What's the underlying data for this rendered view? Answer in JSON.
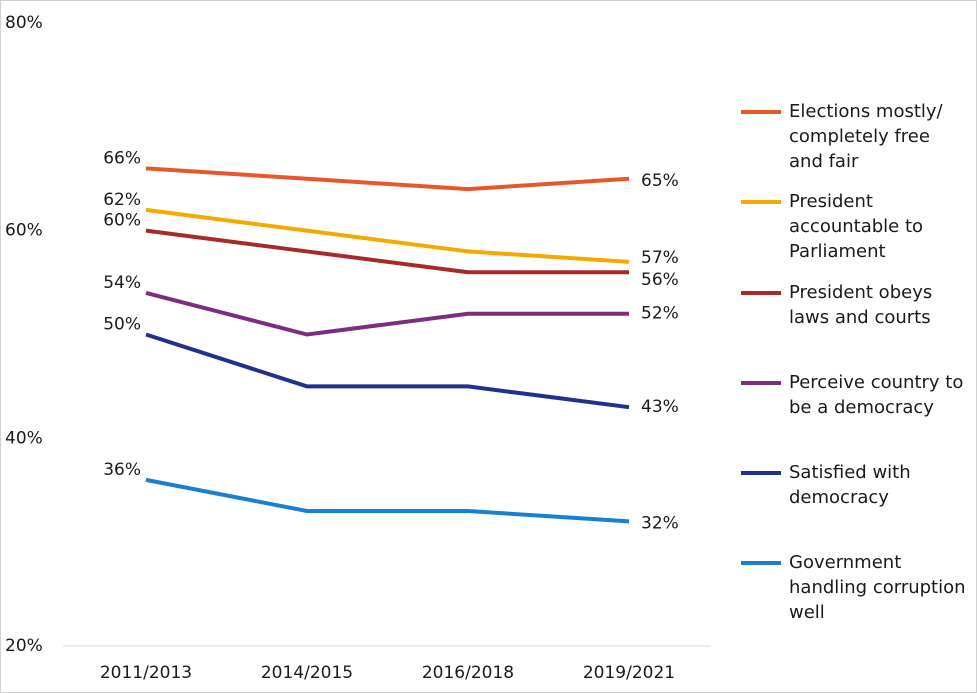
{
  "chart_data": {
    "type": "line",
    "categories": [
      "2011/2013",
      "2014/2015",
      "2016/2018",
      "2019/2021"
    ],
    "ylim": [
      20,
      80
    ],
    "yticks": [
      {
        "value": 20,
        "label": "20%"
      },
      {
        "value": 40,
        "label": "40%"
      },
      {
        "value": 60,
        "label": "60%"
      },
      {
        "value": 80,
        "label": "80%"
      }
    ],
    "grid": false,
    "legend": "right",
    "series": [
      {
        "name": "Elections mostly/ completely free and fair",
        "color": "#e8572a",
        "values": [
          66,
          65,
          64,
          65
        ],
        "value_labels": [
          "66%",
          null,
          null,
          "65%"
        ]
      },
      {
        "name": "President accountable to Parliament",
        "color": "#f5a800",
        "values": [
          62,
          60,
          58,
          57
        ],
        "value_labels": [
          "62%",
          null,
          null,
          "57%"
        ]
      },
      {
        "name": "President obeys laws and courts",
        "color": "#a8292b",
        "values": [
          60,
          58,
          56,
          56
        ],
        "value_labels": [
          "60%",
          null,
          null,
          "56%"
        ]
      },
      {
        "name": "Perceive country to be a democracy",
        "color": "#7b2d7e",
        "values": [
          54,
          50,
          52,
          52
        ],
        "value_labels": [
          "54%",
          null,
          null,
          "52%"
        ]
      },
      {
        "name": "Satisfied with democracy",
        "color": "#232f8f",
        "values": [
          50,
          45,
          45,
          43
        ],
        "value_labels": [
          "50%",
          null,
          null,
          "43%"
        ]
      },
      {
        "name": "Government handling corruption well",
        "color": "#1a7fd0",
        "values": [
          36,
          33,
          33,
          32
        ],
        "value_labels": [
          "36%",
          null,
          null,
          "32%"
        ]
      }
    ]
  }
}
